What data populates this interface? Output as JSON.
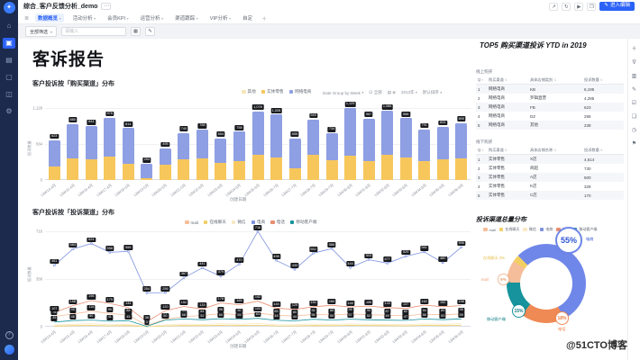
{
  "header": {
    "title": "综合_客户反馈分析_demo",
    "actions": [
      "share",
      "refresh",
      "present",
      "fullscreen"
    ],
    "edit_button": "进入编辑"
  },
  "sidebar": {
    "items": [
      {
        "name": "home",
        "active": false
      },
      {
        "name": "briefcase",
        "active": true
      },
      {
        "name": "file",
        "active": false
      },
      {
        "name": "monitor",
        "active": false
      },
      {
        "name": "image",
        "active": false
      },
      {
        "name": "gear",
        "active": false
      }
    ],
    "bottom": [
      "help",
      "avatar"
    ]
  },
  "tabs": {
    "items": [
      {
        "label": "数据概览",
        "active": true,
        "caret": true
      },
      {
        "label": "活动分析",
        "active": false,
        "caret": true
      },
      {
        "label": "会员KPI",
        "active": false,
        "caret": true
      },
      {
        "label": "运营分析",
        "active": false,
        "caret": true
      },
      {
        "label": "渠道跟踪",
        "active": false,
        "caret": true
      },
      {
        "label": "VIP分析",
        "active": false,
        "caret": true
      },
      {
        "label": "自定",
        "active": false,
        "caret": false
      }
    ],
    "add_label": "＋"
  },
  "filter_bar": {
    "select_label": "全部筛选",
    "search_placeholder": "请输入",
    "buttons": [
      "grid",
      "edit"
    ]
  },
  "report": {
    "title": "客诉报告",
    "watermark": "@51CTO博客"
  },
  "controls": {
    "group_by": "Date Group by Week",
    "all_label": "全部",
    "year_label": "2013年",
    "sort_label": "默认排序"
  },
  "chart_data": [
    {
      "type": "bar",
      "stacked": true,
      "title": "客户投诉按「购买渠道」分布",
      "legend": [
        {
          "label": "其他",
          "color": "#f6e6b8"
        },
        {
          "label": "实体零售",
          "color": "#f7c75c"
        },
        {
          "label": "网络电商",
          "color": "#8e9fe3"
        }
      ],
      "categories": [
        "13W14-4月",
        "13W15-4月",
        "13W16-4月",
        "13W17-4月",
        "13W18-5月",
        "13W19-5月",
        "13W20-5月",
        "13W21-5月",
        "13W22-6月",
        "13W23-6月",
        "13W24-6月",
        "13W25-6月",
        "13W26-7月",
        "13W27-7月",
        "13W28-7月",
        "13W29-7月",
        "13W30-8月",
        "13W31-8月",
        "13W32-8月",
        "13W33-8月",
        "13W34-8月",
        "13W35-9月",
        "13W36-9月"
      ],
      "series": [
        {
          "name": "实体零售",
          "color": "#f7c75c",
          "values": [
            210,
            345,
            330,
            370,
            250,
            30,
            245,
            330,
            345,
            270,
            300,
            390,
            355,
            190,
            390,
            310,
            380,
            300,
            395,
            360,
            300,
            330,
            340
          ]
        },
        {
          "name": "网络电商",
          "color": "#8e9fe3",
          "values": [
            413,
            535,
            514,
            606,
            564,
            223,
            250,
            410,
            443,
            384,
            458,
            688,
            671,
            465,
            559,
            424,
            749,
            667,
            691,
            608,
            491,
            503,
            555
          ]
        }
      ],
      "totals": [
        623,
        880,
        844,
        976,
        814,
        253,
        495,
        740,
        788,
        654,
        758,
        1078,
        1026,
        655,
        949,
        734,
        1129,
        967,
        1086,
        968,
        791,
        833,
        895
      ],
      "xlabel": "创建日期",
      "ylabel": "投诉数量",
      "ylim": [
        0,
        1129
      ],
      "yticks": [
        0,
        564,
        1129
      ]
    },
    {
      "type": "line",
      "title": "客户投诉按「投诉渠道」分布",
      "legend": [
        {
          "label": "mail",
          "color": "#f6bd9a"
        },
        {
          "label": "在线聊天",
          "color": "#f2cf63"
        },
        {
          "label": "微信",
          "color": "#f8e9c5"
        },
        {
          "label": "电商",
          "color": "#7d92e0"
        },
        {
          "label": "电话",
          "color": "#e98d72"
        },
        {
          "label": "移动客户端",
          "color": "#16939c"
        }
      ],
      "categories": [
        "13W14-4月",
        "13W15-4月",
        "13W16-4月",
        "13W17-4月",
        "13W18-5月",
        "13W19-5月",
        "13W20-5月",
        "13W21-5月",
        "13W22-6月",
        "13W23-6月",
        "13W24-6月",
        "13W25-6月",
        "13W26-7月",
        "13W27-7月",
        "13W28-7月",
        "13W29-7月",
        "13W30-8月",
        "13W31-8月",
        "13W32-8月",
        "13W33-8月",
        "13W34-8月",
        "13W35-9月",
        "13W36-9月"
      ],
      "series": [
        {
          "name": "在线聊天",
          "color": "#f2cf63",
          "labels": false,
          "values": [
            5,
            8,
            10,
            7,
            9,
            0,
            6,
            9,
            8,
            10,
            9,
            11,
            7,
            6,
            9,
            8,
            10,
            9,
            8,
            7,
            10,
            9,
            10
          ]
        },
        {
          "name": "微信",
          "color": "#f8e9c5",
          "labels": false,
          "values": [
            12,
            18,
            22,
            16,
            19,
            1,
            14,
            20,
            17,
            22,
            19,
            24,
            16,
            15,
            20,
            18,
            21,
            19,
            17,
            16,
            21,
            19,
            22
          ]
        },
        {
          "name": "mail",
          "color": "#f6bd9a",
          "labels": true,
          "values": [
            78,
            95,
            116,
            99,
            88,
            9,
            56,
            77,
            84,
            98,
            90,
            103,
            85,
            80,
            92,
            88,
            95,
            90,
            87,
            82,
            94,
            89,
            96
          ]
        },
        {
          "name": "移动客户端",
          "color": "#16939c",
          "labels": true,
          "values": [
            35,
            46,
            50,
            41,
            45,
            3,
            50,
            58,
            52,
            60,
            55,
            63,
            48,
            44,
            56,
            50,
            57,
            52,
            49,
            47,
            58,
            53,
            59
          ]
        },
        {
          "name": "电话",
          "color": "#e98d72",
          "labels": true,
          "values": [
            107,
            158,
            196,
            175,
            144,
            38,
            120,
            152,
            133,
            178,
            165,
            192,
            140,
            129,
            150,
            160,
            148,
            155,
            143,
            137,
            162,
            150,
            158
          ]
        },
        {
          "name": "电商",
          "color": "#7d92e0",
          "labels": true,
          "points": true,
          "values": [
            461,
            583,
            624,
            558,
            566,
            254,
            256,
            367,
            441,
            379,
            470,
            716,
            498,
            430,
            552,
            586,
            444,
            503,
            477,
            529,
            561,
            480,
            596
          ]
        }
      ],
      "xlabel": "创建日期",
      "ylabel": "投诉数量",
      "ylim": [
        0,
        716
      ],
      "yticks": [
        0,
        358,
        716
      ]
    },
    {
      "type": "pie",
      "donut": true,
      "title": "投诉渠道总量分布",
      "start_angle": -45,
      "segments": [
        {
          "name": "电商",
          "value": 55,
          "color": "#6f87e8"
        },
        {
          "name": "电话",
          "value": 18,
          "color": "#ef8a55"
        },
        {
          "name": "移动客户端",
          "value": 15,
          "color": "#16939c"
        },
        {
          "name": "mail",
          "value": 9,
          "color": "#f6bd9a"
        },
        {
          "name": "在线聊天",
          "value": 3,
          "color": "#f2cf63"
        }
      ],
      "legend": [
        {
          "label": "mail",
          "color": "#f6bd9a"
        },
        {
          "label": "在线聊天",
          "color": "#f2cf63"
        },
        {
          "label": "微信",
          "color": "#f8e9c5"
        },
        {
          "label": "电商",
          "color": "#7d92e0"
        },
        {
          "label": "电话",
          "color": "#e98d72"
        },
        {
          "label": "移动客户端",
          "color": "#16939c"
        }
      ],
      "callouts": {
        "ds": "55%",
        "ds_label": "电商",
        "tel": "18%",
        "tel_label": "电话",
        "app": "15%",
        "app_label": "移动客户端",
        "mail": "9%",
        "mail_label": "mail",
        "chat": "在线聊天 3%"
      }
    }
  ],
  "top5": {
    "title": "TOP5 购买渠道投诉 YTD in 2019",
    "sections": [
      {
        "label": "线上购买",
        "columns": [
          "Q",
          "购买渠道",
          "具体店铺类别",
          "投诉数量"
        ],
        "rows": [
          [
            "1",
            "网络电商",
            "KB",
            "6,195"
          ],
          [
            "2",
            "网络电商",
            "罗辑直营",
            "4,285"
          ],
          [
            "3",
            "网络电商",
            "FB",
            "623"
          ],
          [
            "4",
            "网络电商",
            "DZ",
            "295"
          ],
          [
            "5",
            "网络电商",
            "其他",
            "238"
          ]
        ]
      },
      {
        "label": "线下购买",
        "columns": [
          "Q",
          "购买渠道",
          "具体店铺名称",
          "投诉数量"
        ],
        "rows": [
          [
            "1",
            "实体零售",
            "X店",
            "4,614"
          ],
          [
            "2",
            "实体零售",
            "商超",
            "730"
          ],
          [
            "3",
            "实体零售",
            "A店",
            "500"
          ],
          [
            "4",
            "实体零售",
            "K店",
            "328"
          ],
          [
            "5",
            "实体零售",
            "C店",
            "170"
          ]
        ]
      }
    ]
  },
  "rail": {
    "items": [
      "plus",
      "filter",
      "chart",
      "edit",
      "checkbox",
      "copy",
      "clock",
      "flag"
    ]
  }
}
